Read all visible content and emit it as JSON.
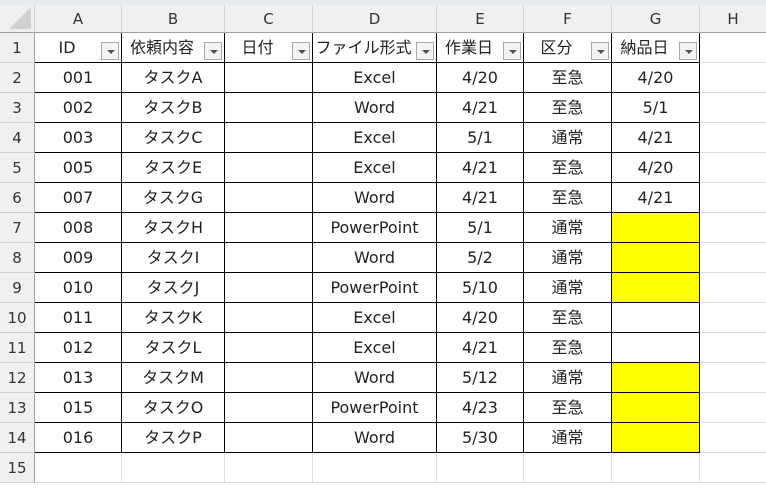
{
  "columns": [
    "A",
    "B",
    "C",
    "D",
    "E",
    "F",
    "G",
    "H"
  ],
  "row_numbers": [
    "1",
    "2",
    "3",
    "4",
    "5",
    "6",
    "7",
    "8",
    "9",
    "10",
    "11",
    "12",
    "13",
    "14",
    "15"
  ],
  "headers": [
    "ID",
    "依頼内容",
    "日付",
    "ファイル形式",
    "作業日",
    "区分",
    "納品日"
  ],
  "highlight_color": "#ffff00",
  "rows": [
    {
      "id": "001",
      "task": "タスクA",
      "date": "",
      "file": "Excel",
      "work": "4/20",
      "kind": "至急",
      "delivery": "4/20",
      "highlight": false
    },
    {
      "id": "002",
      "task": "タスクB",
      "date": "",
      "file": "Word",
      "work": "4/21",
      "kind": "至急",
      "delivery": "5/1",
      "highlight": false
    },
    {
      "id": "003",
      "task": "タスクC",
      "date": "",
      "file": "Excel",
      "work": "5/1",
      "kind": "通常",
      "delivery": "4/21",
      "highlight": false
    },
    {
      "id": "005",
      "task": "タスクE",
      "date": "",
      "file": "Excel",
      "work": "4/21",
      "kind": "至急",
      "delivery": "4/20",
      "highlight": false
    },
    {
      "id": "007",
      "task": "タスクG",
      "date": "",
      "file": "Word",
      "work": "4/21",
      "kind": "至急",
      "delivery": "4/21",
      "highlight": false
    },
    {
      "id": "008",
      "task": "タスクH",
      "date": "",
      "file": "PowerPoint",
      "work": "5/1",
      "kind": "通常",
      "delivery": "",
      "highlight": true
    },
    {
      "id": "009",
      "task": "タスクI",
      "date": "",
      "file": "Word",
      "work": "5/2",
      "kind": "通常",
      "delivery": "",
      "highlight": true
    },
    {
      "id": "010",
      "task": "タスクJ",
      "date": "",
      "file": "PowerPoint",
      "work": "5/10",
      "kind": "通常",
      "delivery": "",
      "highlight": true
    },
    {
      "id": "011",
      "task": "タスクK",
      "date": "",
      "file": "Excel",
      "work": "4/20",
      "kind": "至急",
      "delivery": "",
      "highlight": false
    },
    {
      "id": "012",
      "task": "タスクL",
      "date": "",
      "file": "Excel",
      "work": "4/21",
      "kind": "至急",
      "delivery": "",
      "highlight": false
    },
    {
      "id": "013",
      "task": "タスクM",
      "date": "",
      "file": "Word",
      "work": "5/12",
      "kind": "通常",
      "delivery": "",
      "highlight": true
    },
    {
      "id": "015",
      "task": "タスクO",
      "date": "",
      "file": "PowerPoint",
      "work": "4/23",
      "kind": "至急",
      "delivery": "",
      "highlight": true
    },
    {
      "id": "016",
      "task": "タスクP",
      "date": "",
      "file": "Word",
      "work": "5/30",
      "kind": "通常",
      "delivery": "",
      "highlight": true
    }
  ]
}
